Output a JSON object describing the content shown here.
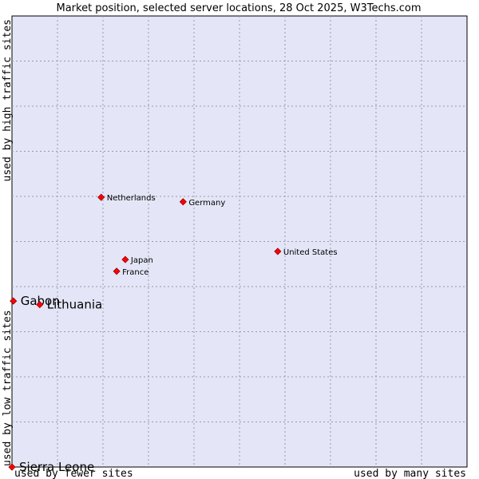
{
  "chart_data": {
    "type": "scatter",
    "title": "Market position, selected server locations, 28 Oct 2025, W3Techs.com",
    "xlabel_left": "used by fewer sites",
    "xlabel_right": "used by many sites",
    "ylabel_bottom": "used by low traffic sites",
    "ylabel_top": "used by high traffic sites",
    "xlim": [
      0,
      10
    ],
    "ylim": [
      0,
      10
    ],
    "grid": true,
    "marker_color": "#ff0000",
    "plot_background": "#e4e6f8",
    "points": [
      {
        "name": "Netherlands",
        "x": 1.96,
        "y": 5.98,
        "size": "small"
      },
      {
        "name": "Germany",
        "x": 3.76,
        "y": 5.88,
        "size": "small"
      },
      {
        "name": "United States",
        "x": 5.84,
        "y": 4.78,
        "size": "small"
      },
      {
        "name": "Japan",
        "x": 2.49,
        "y": 4.6,
        "size": "small"
      },
      {
        "name": "France",
        "x": 2.3,
        "y": 4.34,
        "size": "small"
      },
      {
        "name": "Gabon",
        "x": 0.03,
        "y": 3.68,
        "size": "large"
      },
      {
        "name": "Lithuania",
        "x": 0.61,
        "y": 3.6,
        "size": "large"
      },
      {
        "name": "Sierra Leone",
        "x": 0.0,
        "y": 0.0,
        "size": "large"
      }
    ]
  }
}
